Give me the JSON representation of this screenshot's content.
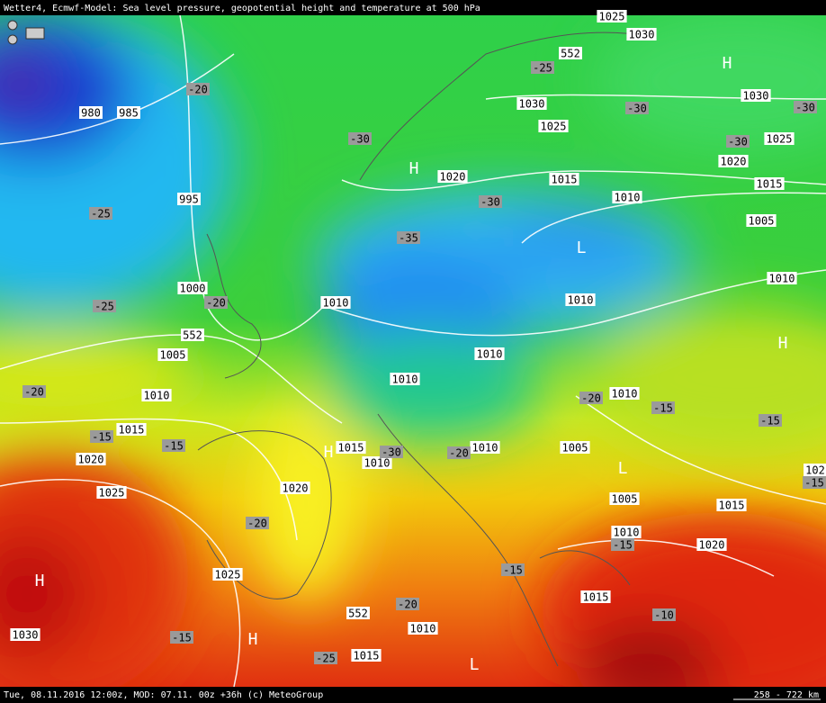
{
  "header": {
    "title": "Wetter4, Ecmwf-Model: Sea level pressure, geopotential height and temperature at 500 hPa"
  },
  "footer": {
    "text": "Tue, 08.11.2016 12:00z, MOD: 07.11. 00z +36h (c) MeteoGroup",
    "scale": "258 - 722 km"
  },
  "map": {
    "isobar_labels": [
      "1025",
      "1030",
      "552",
      "980",
      "985",
      "995",
      "1030",
      "1030",
      "1025",
      "1025",
      "1020",
      "1020",
      "1015",
      "1015",
      "1010",
      "1005",
      "1010",
      "1010",
      "1010",
      "1000",
      "552",
      "1005",
      "1010",
      "1010",
      "1010",
      "1010",
      "1015",
      "1015",
      "1010",
      "1010",
      "1005",
      "1020",
      "1020",
      "1025",
      "1005",
      "1015",
      "1010",
      "1020",
      "1025",
      "1015",
      "552",
      "1030",
      "1010",
      "1015",
      "102"
    ],
    "temperature_labels": [
      "-25",
      "-20",
      "-30",
      "-30",
      "-30",
      "-30",
      "-30",
      "-25",
      "-35",
      "-25",
      "-20",
      "-20",
      "-20",
      "-15",
      "-15",
      "-15",
      "-15",
      "-30",
      "-20",
      "-15",
      "-20",
      "-15",
      "-15",
      "-20",
      "-10",
      "-15",
      "-25"
    ],
    "pressure_centers": [
      "H",
      "H",
      "L",
      "H",
      "H",
      "L",
      "H",
      "H",
      "L"
    ]
  }
}
